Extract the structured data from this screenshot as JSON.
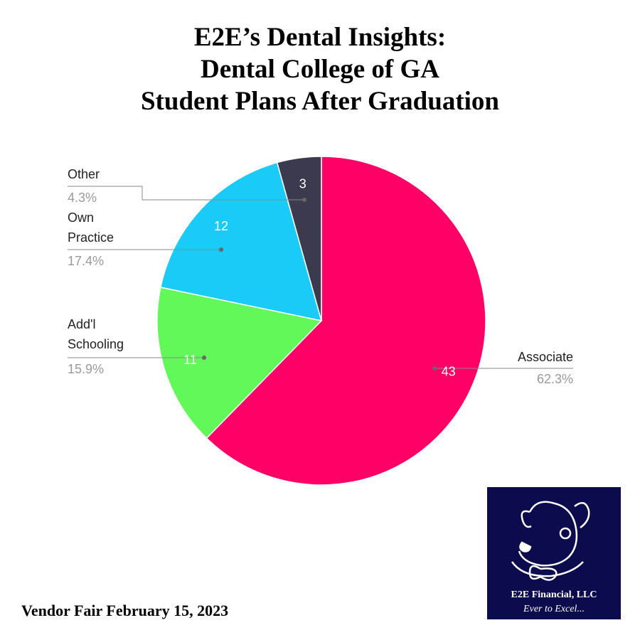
{
  "chart_data": {
    "type": "pie",
    "title": [
      "E2E’s Dental Insights:",
      "Dental College of GA",
      "Student Plans After Graduation"
    ],
    "categories": [
      "Associate",
      "Add'l Schooling",
      "Own Practice",
      "Other"
    ],
    "values": [
      43,
      11,
      12,
      3
    ],
    "percent_labels": [
      "62.3%",
      "15.9%",
      "17.4%",
      "4.3%"
    ],
    "colors": [
      "#ff0066",
      "#62f85a",
      "#1acbf8",
      "#3b3a4f"
    ],
    "footer": "Vendor Fair February 15, 2023"
  },
  "logo": {
    "name": "E2E Financial, LLC",
    "tagline": "Ever to Excel..."
  }
}
